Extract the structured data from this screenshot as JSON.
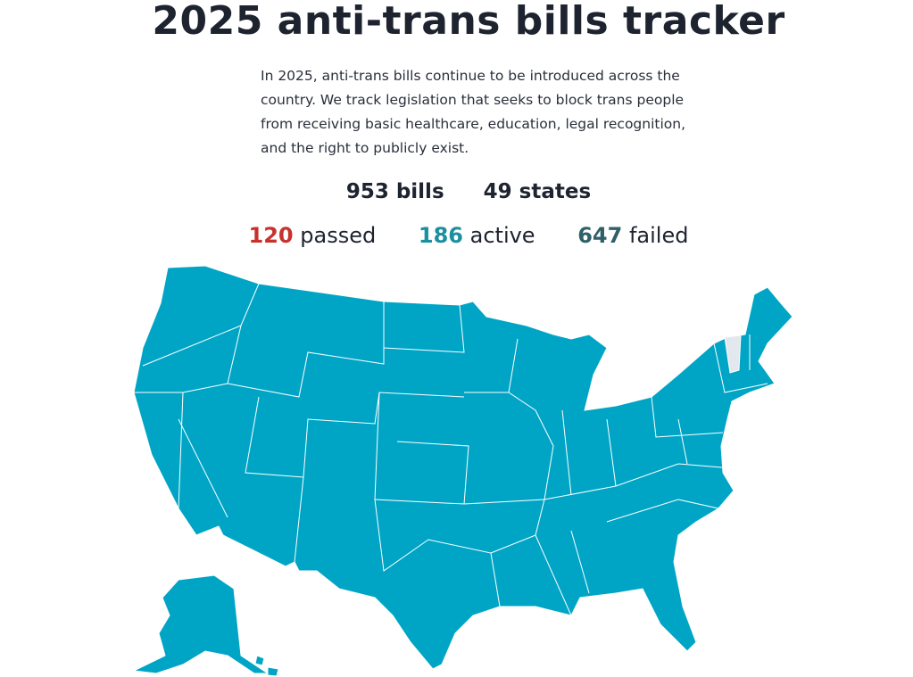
{
  "header": {
    "title": "2025 anti-trans bills tracker"
  },
  "intro": "In 2025, anti-trans bills continue to be introduced across the country. We track legislation that seeks to block trans people from receiving basic healthcare, education, legal recognition, and the right to publicly exist.",
  "totals": {
    "bills": "953 bills",
    "states": "49 states"
  },
  "status": {
    "passed": {
      "count": "120",
      "label": "passed",
      "color": "#c8322c"
    },
    "active": {
      "count": "186",
      "label": "active",
      "color": "#1a8fa0"
    },
    "failed": {
      "count": "647",
      "label": "failed",
      "color": "#2f6068"
    }
  },
  "map": {
    "state_fill": "#00a5c6",
    "no_bills_fill": "#e3e8ee",
    "no_bills_state": "Vermont"
  }
}
